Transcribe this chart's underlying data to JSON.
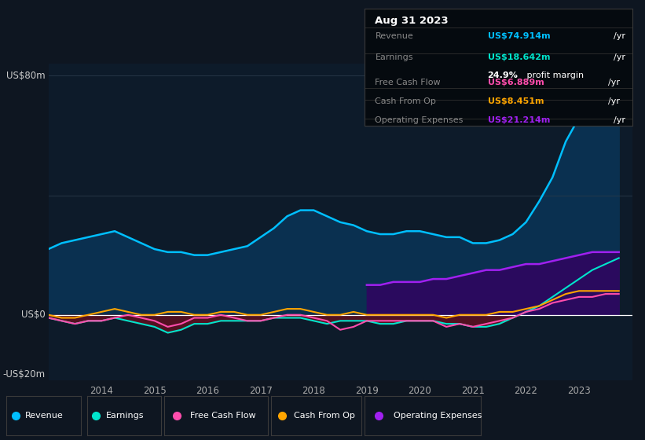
{
  "bg_color": "#0e1621",
  "chart_bg": "#0d1b2a",
  "title": "Aug 31 2023",
  "ylabel_top": "US$80m",
  "ylabel_zero": "US$0",
  "ylabel_neg": "-US$20m",
  "figsize": [
    8.21,
    5.6
  ],
  "dpi": 100,
  "years": [
    2013.0,
    2013.25,
    2013.5,
    2013.75,
    2014.0,
    2014.25,
    2014.5,
    2014.75,
    2015.0,
    2015.25,
    2015.5,
    2015.75,
    2016.0,
    2016.25,
    2016.5,
    2016.75,
    2017.0,
    2017.25,
    2017.5,
    2017.75,
    2018.0,
    2018.25,
    2018.5,
    2018.75,
    2019.0,
    2019.25,
    2019.5,
    2019.75,
    2020.0,
    2020.25,
    2020.5,
    2020.75,
    2021.0,
    2021.25,
    2021.5,
    2021.75,
    2022.0,
    2022.25,
    2022.5,
    2022.75,
    2023.0,
    2023.25,
    2023.5,
    2023.75
  ],
  "revenue": [
    22,
    24,
    25,
    26,
    27,
    28,
    26,
    24,
    22,
    21,
    21,
    20,
    20,
    21,
    22,
    23,
    26,
    29,
    33,
    35,
    35,
    33,
    31,
    30,
    28,
    27,
    27,
    28,
    28,
    27,
    26,
    26,
    24,
    24,
    25,
    27,
    31,
    38,
    46,
    58,
    66,
    72,
    78,
    82
  ],
  "earnings": [
    -1,
    -2,
    -3,
    -2,
    -2,
    -1,
    -2,
    -3,
    -4,
    -6,
    -5,
    -3,
    -3,
    -2,
    -2,
    -2,
    -2,
    -1,
    -1,
    -1,
    -2,
    -3,
    -2,
    -2,
    -2,
    -3,
    -3,
    -2,
    -2,
    -2,
    -3,
    -3,
    -4,
    -4,
    -3,
    -1,
    1,
    3,
    6,
    9,
    12,
    15,
    17,
    19
  ],
  "free_cash_flow": [
    -1,
    -2,
    -3,
    -2,
    -2,
    -1,
    0,
    -1,
    -2,
    -4,
    -3,
    -1,
    -1,
    0,
    -1,
    -2,
    -2,
    -1,
    0,
    0,
    -1,
    -2,
    -5,
    -4,
    -2,
    -2,
    -2,
    -2,
    -2,
    -2,
    -4,
    -3,
    -4,
    -3,
    -2,
    -1,
    1,
    2,
    4,
    5,
    6,
    6,
    7,
    7
  ],
  "cash_from_op": [
    0,
    -1,
    -1,
    0,
    1,
    2,
    1,
    0,
    0,
    1,
    1,
    0,
    0,
    1,
    1,
    0,
    0,
    1,
    2,
    2,
    1,
    0,
    0,
    1,
    0,
    0,
    0,
    0,
    0,
    0,
    -1,
    0,
    0,
    0,
    1,
    1,
    2,
    3,
    5,
    7,
    8,
    8,
    8,
    8
  ],
  "op_expenses": [
    null,
    null,
    null,
    null,
    null,
    null,
    null,
    null,
    null,
    null,
    null,
    null,
    null,
    null,
    null,
    null,
    null,
    null,
    null,
    null,
    null,
    null,
    null,
    null,
    10,
    10,
    11,
    11,
    11,
    12,
    12,
    13,
    14,
    15,
    15,
    16,
    17,
    17,
    18,
    19,
    20,
    21,
    21,
    21
  ],
  "revenue_color": "#00bfff",
  "earnings_color": "#00e5cc",
  "fcf_color": "#ff4dac",
  "cashop_color": "#ffa500",
  "opex_color": "#a020f0",
  "revenue_fill": "#0a3050",
  "opex_fill": "#2a0a5e",
  "legend_items": [
    "Revenue",
    "Earnings",
    "Free Cash Flow",
    "Cash From Op",
    "Operating Expenses"
  ],
  "legend_colors": [
    "#00bfff",
    "#00e5cc",
    "#ff4dac",
    "#ffa500",
    "#a020f0"
  ],
  "xmin": 2013.0,
  "xmax": 2024.0,
  "ymin": -22,
  "ymax": 84,
  "xticks": [
    2014,
    2015,
    2016,
    2017,
    2018,
    2019,
    2020,
    2021,
    2022,
    2023
  ]
}
